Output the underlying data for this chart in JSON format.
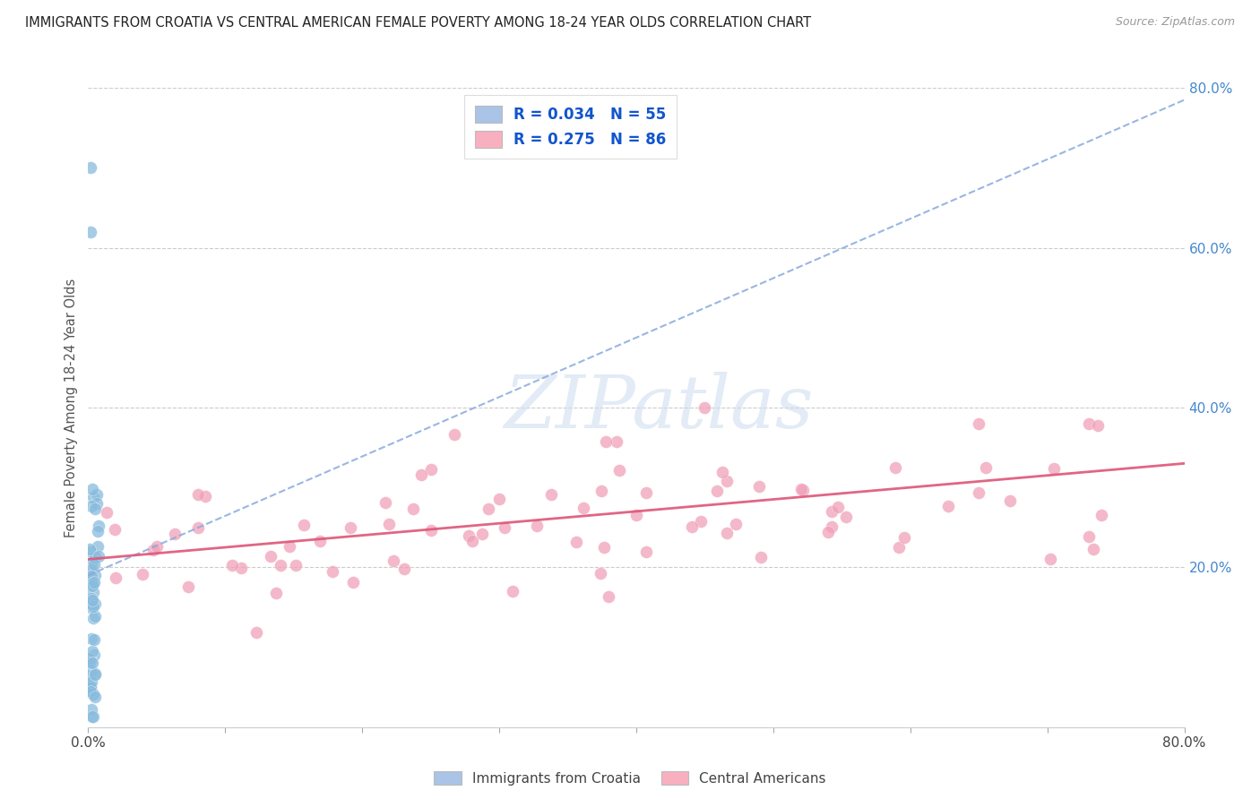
{
  "title": "IMMIGRANTS FROM CROATIA VS CENTRAL AMERICAN FEMALE POVERTY AMONG 18-24 YEAR OLDS CORRELATION CHART",
  "source": "Source: ZipAtlas.com",
  "ylabel": "Female Poverty Among 18-24 Year Olds",
  "xlim": [
    0,
    0.8
  ],
  "ylim": [
    0,
    0.8
  ],
  "croatia_R": 0.034,
  "croatia_N": 55,
  "central_R": 0.275,
  "central_N": 86,
  "legend_color_croatia": "#aac4e8",
  "legend_color_central": "#f8b0c0",
  "scatter_color_croatia": "#88bbdd",
  "scatter_color_central": "#f0a0b8",
  "trendline_color_croatia": "#88aadd",
  "trendline_color_central": "#dd5577",
  "watermark_color": "#d0dff0",
  "background_color": "#ffffff",
  "grid_color": "#cccccc",
  "title_color": "#222222",
  "axis_label_color": "#555555",
  "right_tick_color": "#4488cc",
  "legend_text_color": "#1155cc",
  "bottom_legend_label1": "Immigrants from Croatia",
  "bottom_legend_label2": "Central Americans"
}
